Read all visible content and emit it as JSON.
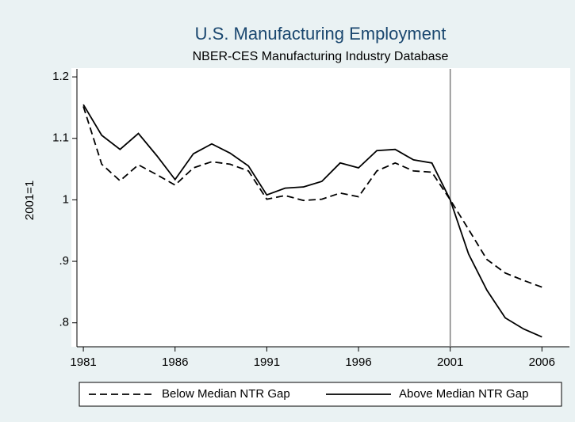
{
  "chart_data": {
    "type": "line",
    "title": "U.S. Manufacturing Employment",
    "subtitle": "NBER-CES Manufacturing Industry Database",
    "y_label": "2001=1",
    "x": [
      1981,
      1982,
      1983,
      1984,
      1985,
      1986,
      1987,
      1988,
      1989,
      1990,
      1991,
      1992,
      1993,
      1994,
      1995,
      1996,
      1997,
      1998,
      1999,
      2000,
      2001,
      2002,
      2003,
      2004,
      2005,
      2006
    ],
    "series": [
      {
        "name": "Below Median NTR Gap",
        "color": "#000000",
        "dash": true,
        "values": [
          1.152,
          1.058,
          1.031,
          1.057,
          1.041,
          1.024,
          1.052,
          1.062,
          1.058,
          1.047,
          1.001,
          1.007,
          0.999,
          1.001,
          1.011,
          1.005,
          1.047,
          1.06,
          1.047,
          1.045,
          1.0,
          0.952,
          0.903,
          0.881,
          0.869,
          0.858
        ]
      },
      {
        "name": "Above Median NTR Gap",
        "color": "#000000",
        "dash": false,
        "values": [
          1.155,
          1.105,
          1.082,
          1.108,
          1.072,
          1.033,
          1.075,
          1.091,
          1.076,
          1.055,
          1.008,
          1.019,
          1.021,
          1.03,
          1.06,
          1.052,
          1.08,
          1.082,
          1.065,
          1.06,
          1.0,
          0.912,
          0.853,
          0.808,
          0.79,
          0.777
        ]
      }
    ],
    "xlim": [
      1980.65,
      2007.5
    ],
    "ylim": [
      0.761,
      1.213
    ],
    "xticks": [
      1981,
      1986,
      1991,
      1996,
      2001,
      2006
    ],
    "yticks": [
      {
        "value": 0.8,
        "label": ".8"
      },
      {
        "value": 0.9,
        "label": ".9"
      },
      1,
      1.1,
      1.2
    ],
    "xline": 2001,
    "xline_color": "#7f7f7f",
    "legend": "bottom"
  }
}
